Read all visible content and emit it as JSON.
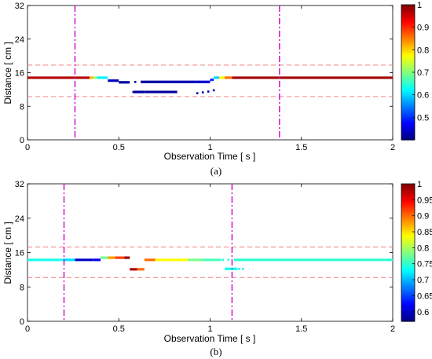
{
  "chart_data": [
    {
      "panel_label": "(a)",
      "type": "scatter",
      "xlabel": "Observation Time [ s ]",
      "ylabel": "Distance [ cm ]",
      "xlim": [
        0,
        2
      ],
      "ylim": [
        0,
        32
      ],
      "x_ticks": [
        "0",
        "0.5",
        "1",
        "1.5",
        "2"
      ],
      "y_ticks": [
        "0",
        "8",
        "16",
        "24",
        "32"
      ],
      "dashed_hlines_cm": [
        17.8,
        10.3
      ],
      "dashdot_vlines_s": [
        0.26,
        1.38
      ],
      "colorbar": {
        "min": 0.4,
        "max": 1.0,
        "ticks": [
          "0.5",
          "0.6",
          "0.7",
          "0.8",
          "0.9",
          "1"
        ]
      },
      "segments": [
        {
          "x": [
            0.0,
            0.34
          ],
          "y": 14.8,
          "c": 0.97
        },
        {
          "x": [
            0.34,
            0.36
          ],
          "y": 14.8,
          "c": 0.82
        },
        {
          "x": [
            0.36,
            0.38
          ],
          "y": 14.8,
          "c": 0.72
        },
        {
          "x": [
            0.38,
            0.44
          ],
          "y": 14.8,
          "c": 0.62
        },
        {
          "x": [
            0.44,
            0.5
          ],
          "y": 14.1,
          "c": 0.44
        },
        {
          "x": [
            0.5,
            0.56
          ],
          "y": 13.7,
          "c": 0.42
        },
        {
          "x": [
            0.58,
            0.64
          ],
          "y": 11.4,
          "c": 0.42
        },
        {
          "x": [
            0.64,
            0.82
          ],
          "y": 11.4,
          "c": 0.42
        },
        {
          "x": [
            0.62,
            0.74
          ],
          "y": 13.8,
          "c": 0.42
        },
        {
          "x": [
            0.74,
            0.92
          ],
          "y": 13.8,
          "c": 0.43
        },
        {
          "x": [
            0.92,
            1.0
          ],
          "y": 13.8,
          "c": 0.45
        },
        {
          "x": [
            1.0,
            1.02
          ],
          "y": 14.3,
          "c": 0.5
        },
        {
          "x": [
            1.02,
            1.05
          ],
          "y": 14.8,
          "c": 0.6
        },
        {
          "x": [
            1.05,
            1.08
          ],
          "y": 14.8,
          "c": 0.78
        },
        {
          "x": [
            1.08,
            1.12
          ],
          "y": 14.8,
          "c": 0.86
        },
        {
          "x": [
            1.12,
            2.0
          ],
          "y": 14.8,
          "c": 0.98
        }
      ],
      "points": [
        {
          "x": 0.51,
          "y": 13.7,
          "c": 0.42
        },
        {
          "x": 0.54,
          "y": 13.7,
          "c": 0.42
        },
        {
          "x": 0.59,
          "y": 13.8,
          "c": 0.42
        },
        {
          "x": 0.58,
          "y": 11.4,
          "c": 0.42
        },
        {
          "x": 0.72,
          "y": 13.8,
          "c": 0.42
        },
        {
          "x": 0.76,
          "y": 13.8,
          "c": 0.42
        },
        {
          "x": 0.72,
          "y": 11.4,
          "c": 0.42
        },
        {
          "x": 0.94,
          "y": 13.8,
          "c": 0.43
        },
        {
          "x": 0.97,
          "y": 13.8,
          "c": 0.44
        },
        {
          "x": 0.93,
          "y": 11.1,
          "c": 0.43
        },
        {
          "x": 0.96,
          "y": 11.3,
          "c": 0.43
        },
        {
          "x": 0.99,
          "y": 11.5,
          "c": 0.44
        },
        {
          "x": 1.02,
          "y": 11.8,
          "c": 0.45
        }
      ]
    },
    {
      "panel_label": "(b)",
      "type": "scatter",
      "xlabel": "Observation Time [ s ]",
      "ylabel": "Distance [ cm ]",
      "xlim": [
        0,
        2
      ],
      "ylim": [
        0,
        32
      ],
      "x_ticks": [
        "0",
        "0.5",
        "1",
        "1.5",
        "2"
      ],
      "y_ticks": [
        "0",
        "8",
        "16",
        "24",
        "32"
      ],
      "dashed_hlines_cm": [
        17.3,
        10.2
      ],
      "dashdot_vlines_s": [
        0.2,
        1.12
      ],
      "colorbar": {
        "min": 0.57,
        "max": 1.0,
        "ticks": [
          "0.6",
          "0.65",
          "0.7",
          "0.75",
          "0.8",
          "0.85",
          "0.9",
          "0.95",
          "1"
        ]
      },
      "segments": [
        {
          "x": [
            0.0,
            0.2
          ],
          "y": 14.3,
          "c": 0.74
        },
        {
          "x": [
            0.2,
            0.26
          ],
          "y": 14.3,
          "c": 0.72
        },
        {
          "x": [
            0.26,
            0.36
          ],
          "y": 14.3,
          "c": 0.6
        },
        {
          "x": [
            0.36,
            0.4
          ],
          "y": 14.3,
          "c": 0.62
        },
        {
          "x": [
            0.4,
            0.44
          ],
          "y": 14.8,
          "c": 0.78
        },
        {
          "x": [
            0.44,
            0.48
          ],
          "y": 14.8,
          "c": 0.88
        },
        {
          "x": [
            0.48,
            0.53
          ],
          "y": 14.8,
          "c": 0.92
        },
        {
          "x": [
            0.53,
            0.56
          ],
          "y": 14.8,
          "c": 0.99
        },
        {
          "x": [
            0.56,
            0.6
          ],
          "y": 12.1,
          "c": 0.98
        },
        {
          "x": [
            0.6,
            0.64
          ],
          "y": 12.1,
          "c": 0.9
        },
        {
          "x": [
            0.64,
            0.7
          ],
          "y": 14.3,
          "c": 0.9
        },
        {
          "x": [
            0.7,
            0.88
          ],
          "y": 14.3,
          "c": 0.84
        },
        {
          "x": [
            0.88,
            0.96
          ],
          "y": 14.3,
          "c": 0.78
        },
        {
          "x": [
            0.96,
            1.06
          ],
          "y": 14.3,
          "c": 0.76
        },
        {
          "x": [
            1.13,
            2.0
          ],
          "y": 14.3,
          "c": 0.75
        },
        {
          "x": [
            1.08,
            1.15
          ],
          "y": 12.2,
          "c": 0.74
        }
      ],
      "points": [
        {
          "x": 1.07,
          "y": 14.3,
          "c": 0.74
        },
        {
          "x": 1.1,
          "y": 14.3,
          "c": 0.74
        },
        {
          "x": 1.16,
          "y": 12.2,
          "c": 0.74
        },
        {
          "x": 1.18,
          "y": 12.2,
          "c": 0.74
        }
      ]
    }
  ],
  "colors": {
    "dashed_line": "#f08080",
    "dashdot_line": "#cc00cc"
  }
}
